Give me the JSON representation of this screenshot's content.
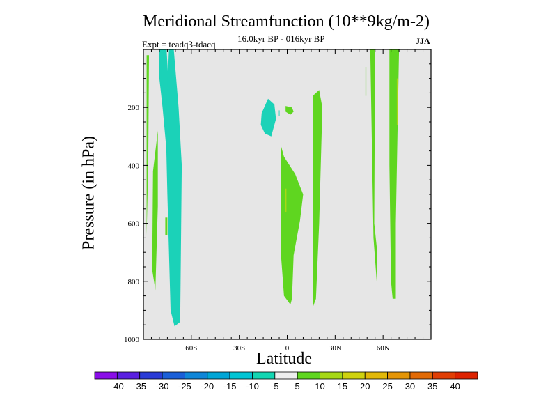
{
  "chart_data": {
    "type": "contour",
    "title": "Meridional Streamfunction (10**9kg/m-2)",
    "subtitle": "16.0kyr BP - 016kyr BP",
    "experiment_label": "Expt = teadq3-tdacq",
    "season": "JJA",
    "xlabel": "Latitude",
    "ylabel": "Pressure (in hPa)",
    "xlim": [
      -90,
      90
    ],
    "ylim": [
      0,
      1000
    ],
    "y_inverted": true,
    "x_ticks": [
      {
        "value": -60,
        "label": "60S"
      },
      {
        "value": -30,
        "label": "30S"
      },
      {
        "value": 0,
        "label": "0"
      },
      {
        "value": 30,
        "label": "30N"
      },
      {
        "value": 60,
        "label": "60N"
      }
    ],
    "y_ticks": [
      {
        "value": 200,
        "label": "200"
      },
      {
        "value": 400,
        "label": "400"
      },
      {
        "value": 600,
        "label": "600"
      },
      {
        "value": 800,
        "label": "800"
      },
      {
        "value": 1000,
        "label": "1000"
      }
    ],
    "background_color": "#e6e6e6",
    "colorbar": {
      "labels": [
        "-40",
        "-35",
        "-30",
        "-25",
        "-20",
        "-15",
        "-10",
        "-5",
        "5",
        "10",
        "15",
        "20",
        "25",
        "30",
        "35",
        "40"
      ],
      "colors": [
        "#8a0ee8",
        "#5a20e0",
        "#2a3bd6",
        "#1a5fd8",
        "#0f86d8",
        "#00a5d6",
        "#00c4d4",
        "#12d6b2",
        "#eeeeee",
        "#5fd620",
        "#a6d816",
        "#cfd20e",
        "#e2b808",
        "#e49506",
        "#e26a05",
        "#e03e04",
        "#dd2200"
      ]
    },
    "regions": [
      {
        "level": "-10",
        "color": "#1bd2b8",
        "lat": [
          -80,
          -75.5,
          -74,
          -76,
          -78,
          -80
        ],
        "p": [
          0,
          0,
          150,
          320,
          200,
          100
        ]
      },
      {
        "level": "-10",
        "color": "#1bd2b8",
        "lat": [
          -74,
          -71,
          -68,
          -66,
          -67,
          -70.5,
          -73,
          -75,
          -76
        ],
        "p": [
          0,
          0,
          200,
          400,
          940,
          955,
          900,
          500,
          260
        ]
      },
      {
        "level": "-10",
        "color": "#1bd2b8",
        "lat": [
          -16,
          -12,
          -8,
          -7,
          -10,
          -14,
          -16.5
        ],
        "p": [
          220,
          170,
          190,
          240,
          300,
          290,
          260
        ]
      },
      {
        "level": "-10",
        "color": "#1bd2b8",
        "lat": [
          -5.2,
          -4.8,
          -4.8,
          -5.2
        ],
        "p": [
          210,
          210,
          230,
          230
        ]
      },
      {
        "level": "5",
        "color": "#5fd620",
        "lat": [
          -88,
          -86.5,
          -87,
          -88
        ],
        "p": [
          20,
          20,
          400,
          640
        ]
      },
      {
        "level": "5",
        "color": "#5fd620",
        "lat": [
          -84,
          -81,
          -81,
          -82.5,
          -84.5
        ],
        "p": [
          420,
          280,
          540,
          830,
          760
        ]
      },
      {
        "level": "5",
        "color": "#5fd620",
        "lat": [
          -76.3,
          -75,
          -75,
          -76.3
        ],
        "p": [
          580,
          580,
          640,
          640
        ]
      },
      {
        "level": "5",
        "color": "#5fd620",
        "lat": [
          -4,
          -2,
          5,
          10,
          8,
          4,
          3,
          2,
          -2,
          -4,
          -4
        ],
        "p": [
          330,
          370,
          430,
          500,
          590,
          710,
          860,
          880,
          850,
          700,
          500
        ]
      },
      {
        "level": "5",
        "color": "#5fd620",
        "lat": [
          -1,
          3,
          4,
          2,
          -1
        ],
        "p": [
          195,
          200,
          215,
          225,
          215
        ]
      },
      {
        "level": "5",
        "color": "#5fd620",
        "lat": [
          16,
          20,
          22,
          20,
          18,
          16,
          16
        ],
        "p": [
          160,
          140,
          200,
          600,
          860,
          890,
          500
        ]
      },
      {
        "level": "10",
        "color": "#a6d816",
        "lat": [
          -1.5,
          -0.5,
          -0.5,
          -1.5
        ],
        "p": [
          480,
          480,
          560,
          560
        ]
      },
      {
        "level": "5",
        "color": "#5fd620",
        "lat": [
          49,
          49.5,
          49.5,
          49
        ],
        "p": [
          60,
          60,
          160,
          160
        ]
      },
      {
        "level": "5",
        "color": "#5fd620",
        "lat": [
          52,
          55,
          54.5,
          56,
          56,
          54
        ],
        "p": [
          0,
          0,
          600,
          680,
          800,
          650
        ]
      },
      {
        "level": "5",
        "color": "#5fd620",
        "lat": [
          64,
          70,
          69,
          68,
          68,
          66,
          65,
          64
        ],
        "p": [
          0,
          0,
          300,
          600,
          860,
          860,
          800,
          400
        ]
      },
      {
        "level": "10",
        "color": "#a6d816",
        "lat": [
          68.6,
          69.2,
          69.2,
          68.6
        ],
        "p": [
          100,
          100,
          260,
          260
        ]
      }
    ]
  }
}
